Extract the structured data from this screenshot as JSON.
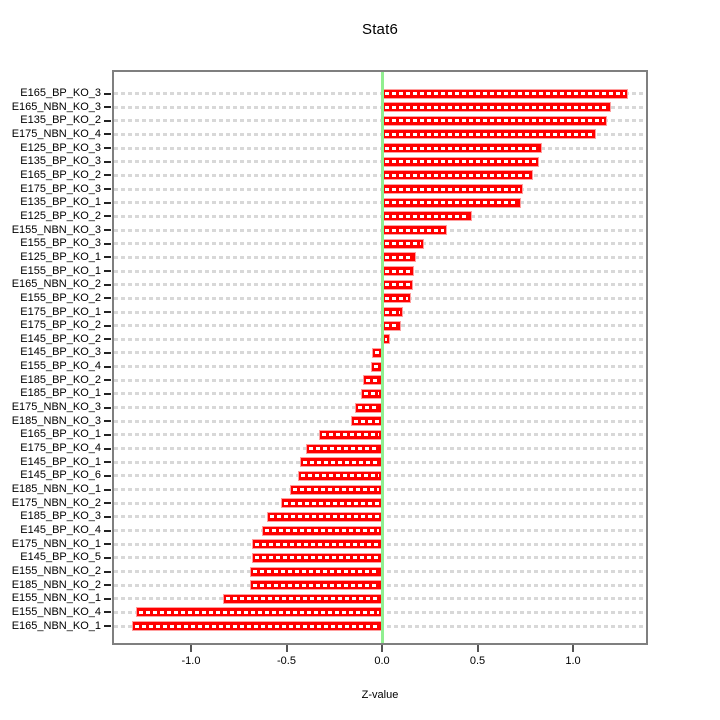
{
  "chart_data": {
    "type": "bar",
    "orientation": "horizontal",
    "title": "Stat6",
    "xlabel": "Z-value",
    "ylabel": "",
    "grid": true,
    "legend": null,
    "xlim": [
      -1.41,
      1.39
    ],
    "xticks": [
      {
        "label": "-1.0",
        "value": -1.0
      },
      {
        "label": "-0.5",
        "value": -0.5
      },
      {
        "label": "0.0",
        "value": 0.0
      },
      {
        "label": "0.5",
        "value": 0.5
      },
      {
        "label": "1.0",
        "value": 1.0
      }
    ],
    "categories": [
      "E165_BP_KO_3",
      "E165_NBN_KO_3",
      "E135_BP_KO_2",
      "E175_NBN_KO_4",
      "E125_BP_KO_3",
      "E135_BP_KO_3",
      "E165_BP_KO_2",
      "E175_BP_KO_3",
      "E135_BP_KO_1",
      "E125_BP_KO_2",
      "E155_NBN_KO_3",
      "E155_BP_KO_3",
      "E125_BP_KO_1",
      "E155_BP_KO_1",
      "E165_NBN_KO_2",
      "E155_BP_KO_2",
      "E175_BP_KO_1",
      "E175_BP_KO_2",
      "E145_BP_KO_2",
      "E145_BP_KO_3",
      "E155_BP_KO_4",
      "E185_BP_KO_2",
      "E185_BP_KO_1",
      "E175_NBN_KO_3",
      "E185_NBN_KO_3",
      "E165_BP_KO_1",
      "E175_BP_KO_4",
      "E145_BP_KO_1",
      "E145_BP_KO_6",
      "E185_NBN_KO_1",
      "E175_NBN_KO_2",
      "E185_BP_KO_3",
      "E145_BP_KO_4",
      "E175_NBN_KO_1",
      "E145_BP_KO_5",
      "E155_NBN_KO_2",
      "E185_NBN_KO_2",
      "E155_NBN_KO_1",
      "E155_NBN_KO_4",
      "E165_NBN_KO_1"
    ],
    "values": [
      1.29,
      1.2,
      1.18,
      1.12,
      0.84,
      0.82,
      0.79,
      0.74,
      0.73,
      0.47,
      0.34,
      0.22,
      0.18,
      0.17,
      0.16,
      0.15,
      0.11,
      0.1,
      0.04,
      -0.05,
      -0.06,
      -0.1,
      -0.11,
      -0.14,
      -0.16,
      -0.33,
      -0.4,
      -0.43,
      -0.44,
      -0.48,
      -0.53,
      -0.6,
      -0.63,
      -0.68,
      -0.68,
      -0.69,
      -0.69,
      -0.83,
      -1.29,
      -1.31
    ],
    "colors": {
      "bar": "#ff0000",
      "bar_border": "#ff9e9e",
      "bar_inner_dash": "#ffffff",
      "zero_line": "#90ee90",
      "grid": "#d8d8d8",
      "frame": "#7f7f7f",
      "text": "#000000"
    }
  }
}
